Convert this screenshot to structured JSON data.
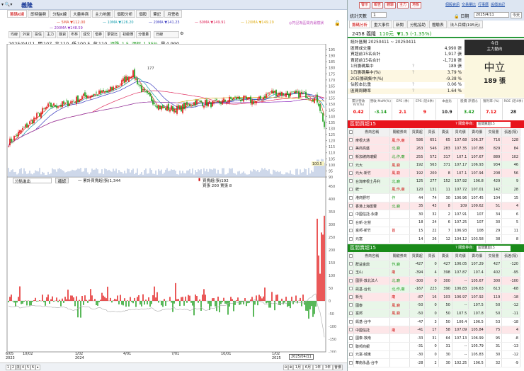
{
  "window": {
    "stock_name": "義隆"
  },
  "tabs": [
    "籌碼K線",
    "即時盤勢",
    "分點K線",
    "大量券商",
    "主力地圖",
    "個股分析",
    "個股",
    "筆記",
    "月營收"
  ],
  "ma": [
    {
      "label": "5MA ▼112.00",
      "color": "#e0442c"
    },
    {
      "label": "10MA ▼126.20",
      "color": "#1aa0b0"
    },
    {
      "label": "20MA ▼141.23",
      "color": "#3a3ac0"
    },
    {
      "label": "60MA ▼149.91",
      "color": "#e03060"
    },
    {
      "label": "120MA ▼149.29",
      "color": "#e0b020"
    },
    {
      "label": "200MA ▼148.59",
      "color": "#9030c0"
    }
  ],
  "mark_note": "◎符記為區間內最樹狀",
  "toolbar": {
    "buttons": [
      "均線",
      "外資",
      "投信",
      "主力",
      "融資",
      "布林",
      "成交",
      "借券",
      "季營比",
      "初級傳",
      "分價量"
    ],
    "period": "日線"
  },
  "ohlc": {
    "date": "2025/04/11",
    "open_label": "開",
    "open": "107",
    "high_label": "高",
    "high": "110",
    "low_label": "低",
    "low": "100.5",
    "close_label": "收",
    "close": "110",
    "chg_label": "漲跌",
    "chg": "-1.5",
    "pct_label": "漲幅",
    "pct": "-1.35%",
    "vol_label": "量",
    "vol": "4,990"
  },
  "price_axis": {
    "min": 90,
    "max": 195,
    "step": 5
  },
  "price_labels": {
    "peak": "177",
    "low": "100.5"
  },
  "price_anchors": [
    [
      0,
      118
    ],
    [
      25,
      132
    ],
    [
      55,
      148
    ],
    [
      80,
      150
    ],
    [
      110,
      157
    ],
    [
      140,
      160
    ],
    [
      160,
      168
    ],
    [
      175,
      176
    ],
    [
      190,
      160
    ],
    [
      215,
      147
    ],
    [
      240,
      146
    ],
    [
      265,
      152
    ],
    [
      290,
      150
    ],
    [
      320,
      155
    ],
    [
      350,
      152
    ],
    [
      370,
      160
    ],
    [
      395,
      158
    ],
    [
      420,
      158
    ],
    [
      437,
      153
    ],
    [
      445,
      135
    ],
    [
      452,
      110
    ]
  ],
  "lower": {
    "select": "分點進出",
    "button": "確認",
    "legend1": "一 累計買賣超(張)1,344",
    "legend2": "買賣超(張)192",
    "legend3": "買張 200 賣張 8",
    "axis": [
      450,
      400,
      350,
      300,
      250,
      200,
      150,
      100,
      50,
      0,
      -50,
      -100,
      -150,
      -200
    ]
  },
  "x_dates": [
    {
      "d": "6/05",
      "y": "2023"
    },
    {
      "d": "10/02",
      "y": ""
    },
    {
      "d": "1/02",
      "y": "2024"
    },
    {
      "d": "4/01",
      "y": ""
    },
    {
      "d": "7/01",
      "y": ""
    },
    {
      "d": "10/01",
      "y": ""
    },
    {
      "d": "1/02",
      "y": "2025"
    }
  ],
  "cursor_date": "2025/04/11",
  "bottom": {
    "pages": [
      "1",
      "2",
      "3",
      "4",
      "5",
      "6",
      "▸"
    ],
    "ranges": [
      "1月",
      "6月",
      "1年",
      "3年"
    ],
    "last": "會價"
  },
  "right": {
    "top_buttons": [
      "警示",
      "報告",
      "體驗",
      "主力",
      "地板"
    ],
    "links": [
      "個股資訊",
      "交易量比",
      "行事曆",
      "設價追記"
    ],
    "days_label": "統計天數",
    "days": "1",
    "date_label": "日期",
    "date": "2025/4/11",
    "today_btn": "今天",
    "tabs": [
      "籌碼分析",
      "重大事件",
      "新聞",
      "分點協助",
      "體驗表",
      "法人目標(195元)"
    ],
    "stock": {
      "code": "2458",
      "name": "義隆",
      "price": "110元",
      "chg": "▼1.5 (-1.35%)"
    },
    "stats": [
      [
        "統計區間  20250411 ~ 20250411",
        "",
        ""
      ],
      [
        "區間成交量",
        "",
        "4,990 張"
      ],
      [
        "買超前15名合計",
        "",
        "1,917 張"
      ],
      [
        "賣超前15名合計",
        "",
        "-1,728 張"
      ],
      [
        "1日籌碼集中",
        "?",
        "189 張"
      ],
      [
        "1日籌碼集中(%)",
        "?",
        "3.79 %"
      ],
      [
        "20日籌碼集中(%)",
        "",
        "-9.38 %"
      ],
      [
        "佔股本比重",
        "?",
        "0.06 %"
      ],
      [
        "區間周轉率",
        "?",
        "1.64 %"
      ]
    ],
    "today": {
      "h1": "今日",
      "h2": "主力動向",
      "state": "中立",
      "amount": "189 張"
    },
    "fund": [
      {
        "h": "累計營收 YoY(%)",
        "v": "0.42",
        "c": "#e00"
      },
      {
        "h": "營收 MoM(%)",
        "v": "-3.14",
        "c": "#1a9a1a"
      },
      {
        "h": "EPS (季)",
        "v": "2.1",
        "c": "#e00"
      },
      {
        "h": "EPS (近4季)",
        "v": "9",
        "c": "#e00"
      },
      {
        "h": "本益比",
        "v": "10.9",
        "c": "#222"
      },
      {
        "h": "股價 淨值比",
        "v": "3.42",
        "c": "#1a9a1a"
      },
      {
        "h": "殖利率 (%)",
        "v": "7.12",
        "c": "#e00"
      },
      {
        "h": "ROE (近4季)",
        "v": "28",
        "c": "#222"
      }
    ],
    "buy": {
      "title": "區間買超15",
      "key_label": "? 關鍵券商:",
      "key_value": "區間買超15",
      "color": "#e8141c",
      "headers": [
        "券商名稱",
        "關鍵券商",
        "買賣超",
        "買張",
        "賣張",
        "買均價",
        "賣均價",
        "交易量",
        "張差(隔)"
      ],
      "rows": [
        [
          "摩根大通",
          "風,作,廟",
          "586",
          "651",
          "65",
          "107.68",
          "106.37",
          "716",
          "128",
          "pk"
        ],
        [
          "美商高盛",
          "北,廟",
          "263",
          "546",
          "283",
          "107.35",
          "107.88",
          "829",
          "84",
          "pk"
        ],
        [
          "新加坡商瑞銀",
          "北,作,廟",
          "255",
          "572",
          "317",
          "107.1",
          "107.67",
          "889",
          "102",
          "pk"
        ],
        [
          "元大",
          "風,廟",
          "192",
          "563",
          "371",
          "107.17",
          "106.93",
          "934",
          "46",
          "gn"
        ],
        [
          "元大-新竹",
          "風,廟",
          "192",
          "200",
          "8",
          "107.1",
          "107.94",
          "208",
          "56",
          "pk"
        ],
        [
          "台灣摩根士丹利",
          "北,廟",
          "125",
          "277",
          "152",
          "107.92",
          "106.8",
          "429",
          "9",
          "gn"
        ],
        [
          "統一",
          "風,作,廟",
          "120",
          "131",
          "11",
          "107.72",
          "107.01",
          "142",
          "28",
          "gn"
        ],
        [
          "港商野村",
          "作",
          "44",
          "74",
          "30",
          "106.96",
          "107.45",
          "104",
          "15",
          ""
        ],
        [
          "香港上海匯豐",
          "北,廟",
          "35",
          "43",
          "8",
          "109",
          "109.62",
          "51",
          "4",
          "pk"
        ],
        [
          "中國信託-永康",
          "",
          "30",
          "32",
          "2",
          "107.91",
          "107",
          "34",
          "6",
          ""
        ],
        [
          "台新-左營",
          "",
          "18",
          "24",
          "6",
          "107.25",
          "107",
          "30",
          "5",
          ""
        ],
        [
          "富邦-新竹",
          "首",
          "15",
          "22",
          "7",
          "106.93",
          "108",
          "29",
          "11",
          ""
        ],
        [
          "元富",
          "",
          "14",
          "26",
          "12",
          "104.12",
          "103.58",
          "38",
          "8",
          ""
        ]
      ]
    },
    "sell": {
      "title": "區間賣超15",
      "key_label": "? 關鍵券商:",
      "key_value": "區間賣超15",
      "color": "#1a8a1a",
      "headers": [
        "券商名稱",
        "關鍵券商",
        "買賣超",
        "買張",
        "賣張",
        "買均價",
        "賣均價",
        "交易量",
        "張差(隔)"
      ],
      "rows": [
        [
          "群益金鼎",
          "作,廟",
          "-427",
          "0",
          "427",
          "106.05",
          "107.29",
          "427",
          "-120",
          "gn"
        ],
        [
          "玉山",
          "廟",
          "-394",
          "4",
          "398",
          "107.87",
          "107.4",
          "402",
          "-95",
          "gn"
        ],
        [
          "國票-敦北法人",
          "北,廟",
          "-300",
          "0",
          "300",
          "--",
          "105.67",
          "300",
          "-100",
          "pk"
        ],
        [
          "凱基-台北",
          "北,作,廟",
          "-167",
          "223",
          "390",
          "106.83",
          "106.63",
          "613",
          "-68",
          "gn"
        ],
        [
          "新光",
          "廟",
          "-87",
          "16",
          "103",
          "106.97",
          "107.92",
          "119",
          "-18",
          "pk"
        ],
        [
          "國泰",
          "風,廟",
          "-50",
          "0",
          "50",
          "--",
          "107.5",
          "50",
          "-12",
          "gn"
        ],
        [
          "富邦",
          "風,廟",
          "-50",
          "0",
          "50",
          "107.5",
          "107.8",
          "50",
          "-11",
          "gn"
        ],
        [
          "凱基-台中",
          "",
          "-47",
          "3",
          "50",
          "106.4",
          "106.5",
          "53",
          "-18",
          ""
        ],
        [
          "中國信託",
          "廟",
          "-41",
          "17",
          "58",
          "107.09",
          "105.84",
          "75",
          "4",
          "pk"
        ],
        [
          "國泰-敦南",
          "",
          "-33",
          "31",
          "64",
          "107.13",
          "106.99",
          "95",
          "-8",
          ""
        ],
        [
          "聯邦商銀",
          "",
          "-31",
          "0",
          "31",
          "--",
          "105.79",
          "31",
          "-13",
          ""
        ],
        [
          "元富-城東",
          "",
          "-30",
          "0",
          "30",
          "--",
          "105.83",
          "30",
          "-12",
          ""
        ],
        [
          "華南永昌-台中",
          "",
          "-28",
          "2",
          "30",
          "102.25",
          "106.5",
          "32",
          "-9",
          ""
        ]
      ]
    }
  }
}
